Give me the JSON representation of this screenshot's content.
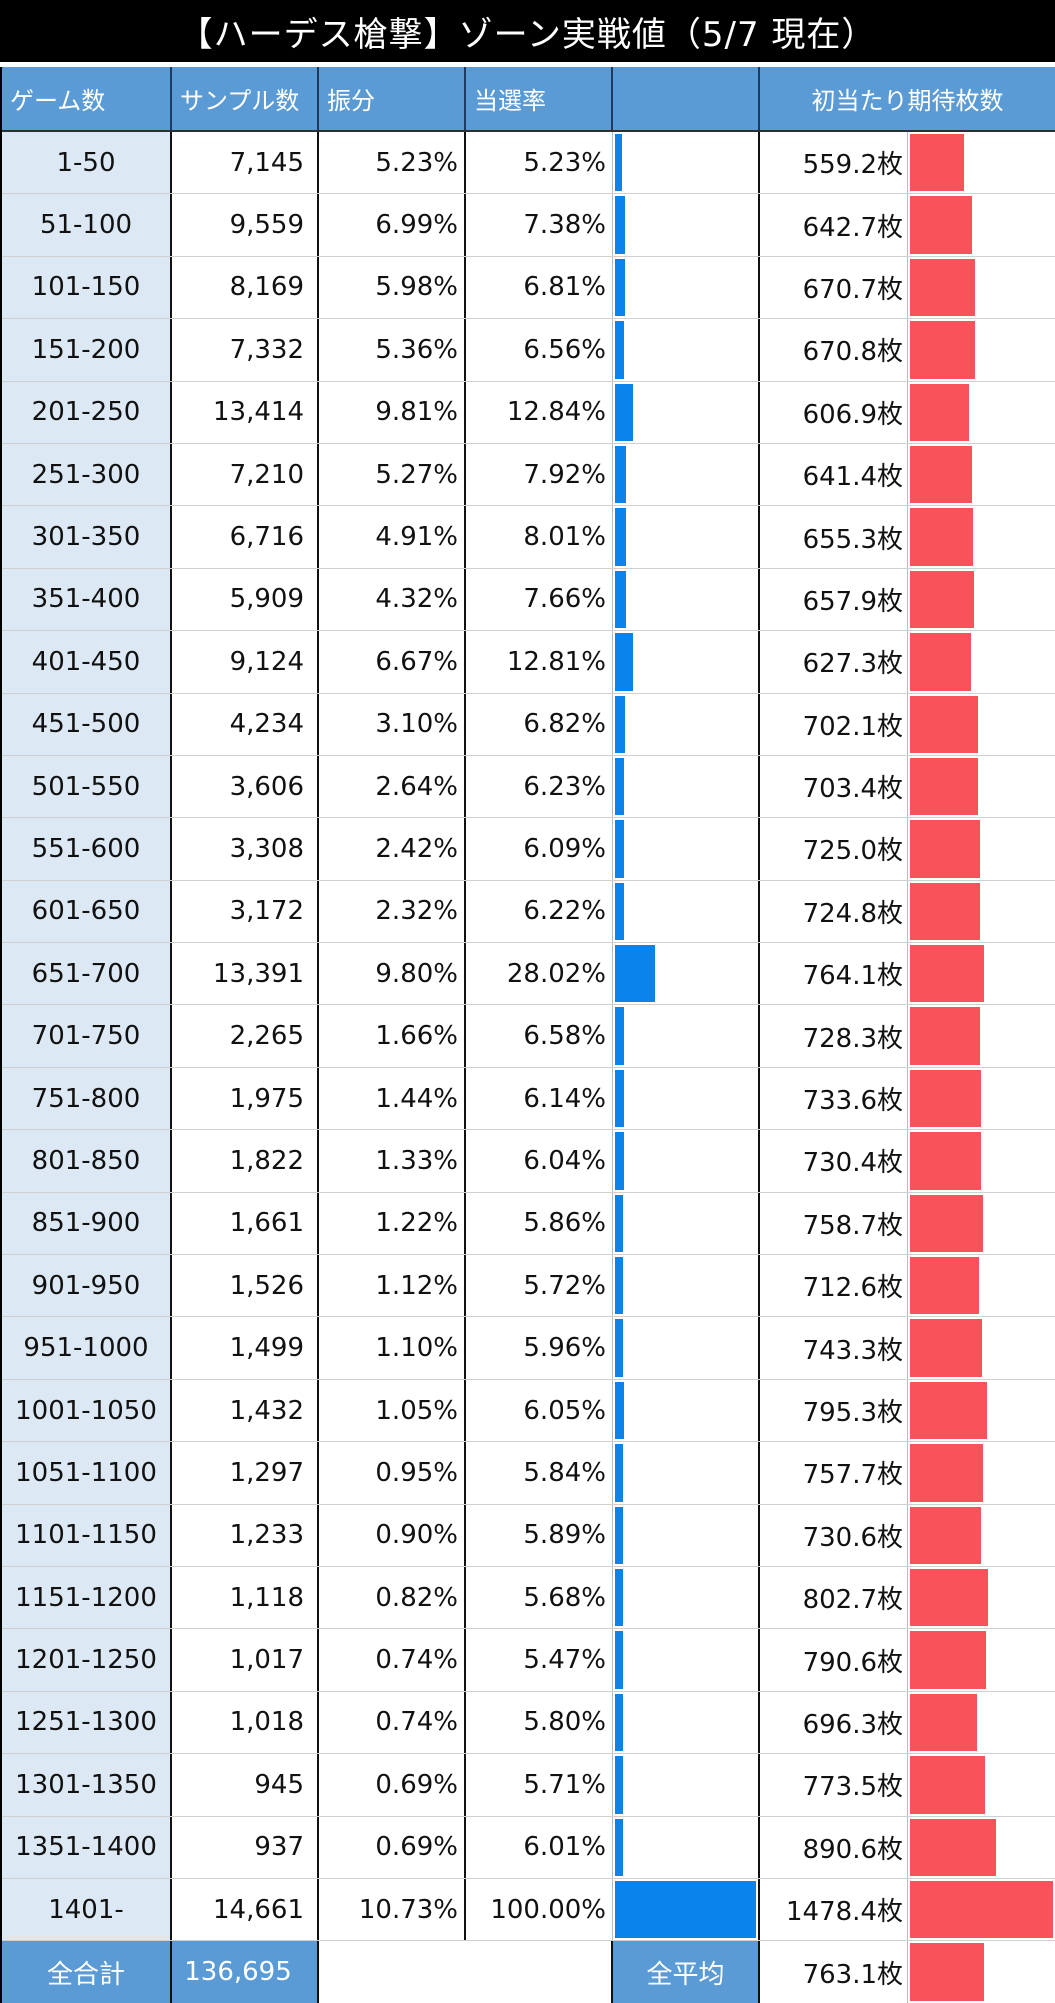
{
  "title": "【ハーデス槍撃】ゾーン実戦値（5/7 現在）",
  "headers": {
    "games": "ゲーム数",
    "samples": "サンプル数",
    "share": "振分",
    "rate": "当選率",
    "rate_bar": "",
    "expect": "初当たり期待枚数"
  },
  "colors": {
    "header_bg": "#5b9bd5",
    "label_bg": "#dce9f5",
    "rate_bar": "#0a84ec",
    "expect_bar": "#fa525b"
  },
  "rows": [
    {
      "zone": "1-50",
      "samples": "7,145",
      "share": "5.23%",
      "rate": "5.23%",
      "rate_value": 5.23,
      "expect": "559.2枚",
      "expect_value": 559.2
    },
    {
      "zone": "51-100",
      "samples": "9,559",
      "share": "6.99%",
      "rate": "7.38%",
      "rate_value": 7.38,
      "expect": "642.7枚",
      "expect_value": 642.7
    },
    {
      "zone": "101-150",
      "samples": "8,169",
      "share": "5.98%",
      "rate": "6.81%",
      "rate_value": 6.81,
      "expect": "670.7枚",
      "expect_value": 670.7
    },
    {
      "zone": "151-200",
      "samples": "7,332",
      "share": "5.36%",
      "rate": "6.56%",
      "rate_value": 6.56,
      "expect": "670.8枚",
      "expect_value": 670.8
    },
    {
      "zone": "201-250",
      "samples": "13,414",
      "share": "9.81%",
      "rate": "12.84%",
      "rate_value": 12.84,
      "expect": "606.9枚",
      "expect_value": 606.9
    },
    {
      "zone": "251-300",
      "samples": "7,210",
      "share": "5.27%",
      "rate": "7.92%",
      "rate_value": 7.92,
      "expect": "641.4枚",
      "expect_value": 641.4
    },
    {
      "zone": "301-350",
      "samples": "6,716",
      "share": "4.91%",
      "rate": "8.01%",
      "rate_value": 8.01,
      "expect": "655.3枚",
      "expect_value": 655.3
    },
    {
      "zone": "351-400",
      "samples": "5,909",
      "share": "4.32%",
      "rate": "7.66%",
      "rate_value": 7.66,
      "expect": "657.9枚",
      "expect_value": 657.9
    },
    {
      "zone": "401-450",
      "samples": "9,124",
      "share": "6.67%",
      "rate": "12.81%",
      "rate_value": 12.81,
      "expect": "627.3枚",
      "expect_value": 627.3
    },
    {
      "zone": "451-500",
      "samples": "4,234",
      "share": "3.10%",
      "rate": "6.82%",
      "rate_value": 6.82,
      "expect": "702.1枚",
      "expect_value": 702.1
    },
    {
      "zone": "501-550",
      "samples": "3,606",
      "share": "2.64%",
      "rate": "6.23%",
      "rate_value": 6.23,
      "expect": "703.4枚",
      "expect_value": 703.4
    },
    {
      "zone": "551-600",
      "samples": "3,308",
      "share": "2.42%",
      "rate": "6.09%",
      "rate_value": 6.09,
      "expect": "725.0枚",
      "expect_value": 725.0
    },
    {
      "zone": "601-650",
      "samples": "3,172",
      "share": "2.32%",
      "rate": "6.22%",
      "rate_value": 6.22,
      "expect": "724.8枚",
      "expect_value": 724.8
    },
    {
      "zone": "651-700",
      "samples": "13,391",
      "share": "9.80%",
      "rate": "28.02%",
      "rate_value": 28.02,
      "expect": "764.1枚",
      "expect_value": 764.1
    },
    {
      "zone": "701-750",
      "samples": "2,265",
      "share": "1.66%",
      "rate": "6.58%",
      "rate_value": 6.58,
      "expect": "728.3枚",
      "expect_value": 728.3
    },
    {
      "zone": "751-800",
      "samples": "1,975",
      "share": "1.44%",
      "rate": "6.14%",
      "rate_value": 6.14,
      "expect": "733.6枚",
      "expect_value": 733.6
    },
    {
      "zone": "801-850",
      "samples": "1,822",
      "share": "1.33%",
      "rate": "6.04%",
      "rate_value": 6.04,
      "expect": "730.4枚",
      "expect_value": 730.4
    },
    {
      "zone": "851-900",
      "samples": "1,661",
      "share": "1.22%",
      "rate": "5.86%",
      "rate_value": 5.86,
      "expect": "758.7枚",
      "expect_value": 758.7
    },
    {
      "zone": "901-950",
      "samples": "1,526",
      "share": "1.12%",
      "rate": "5.72%",
      "rate_value": 5.72,
      "expect": "712.6枚",
      "expect_value": 712.6
    },
    {
      "zone": "951-1000",
      "samples": "1,499",
      "share": "1.10%",
      "rate": "5.96%",
      "rate_value": 5.96,
      "expect": "743.3枚",
      "expect_value": 743.3
    },
    {
      "zone": "1001-1050",
      "samples": "1,432",
      "share": "1.05%",
      "rate": "6.05%",
      "rate_value": 6.05,
      "expect": "795.3枚",
      "expect_value": 795.3
    },
    {
      "zone": "1051-1100",
      "samples": "1,297",
      "share": "0.95%",
      "rate": "5.84%",
      "rate_value": 5.84,
      "expect": "757.7枚",
      "expect_value": 757.7
    },
    {
      "zone": "1101-1150",
      "samples": "1,233",
      "share": "0.90%",
      "rate": "5.89%",
      "rate_value": 5.89,
      "expect": "730.6枚",
      "expect_value": 730.6
    },
    {
      "zone": "1151-1200",
      "samples": "1,118",
      "share": "0.82%",
      "rate": "5.68%",
      "rate_value": 5.68,
      "expect": "802.7枚",
      "expect_value": 802.7
    },
    {
      "zone": "1201-1250",
      "samples": "1,017",
      "share": "0.74%",
      "rate": "5.47%",
      "rate_value": 5.47,
      "expect": "790.6枚",
      "expect_value": 790.6
    },
    {
      "zone": "1251-1300",
      "samples": "1,018",
      "share": "0.74%",
      "rate": "5.80%",
      "rate_value": 5.8,
      "expect": "696.3枚",
      "expect_value": 696.3
    },
    {
      "zone": "1301-1350",
      "samples": "945",
      "share": "0.69%",
      "rate": "5.71%",
      "rate_value": 5.71,
      "expect": "773.5枚",
      "expect_value": 773.5
    },
    {
      "zone": "1351-1400",
      "samples": "937",
      "share": "0.69%",
      "rate": "6.01%",
      "rate_value": 6.01,
      "expect": "890.6枚",
      "expect_value": 890.6
    },
    {
      "zone": "1401-",
      "samples": "14,661",
      "share": "10.73%",
      "rate": "100.00%",
      "rate_value": 100.0,
      "expect": "1478.4枚",
      "expect_value": 1478.4
    }
  ],
  "footer": {
    "total_label": "全合計",
    "total_value": "136,695",
    "avg_label": "全平均",
    "avg_value": "763.1枚",
    "avg_expect_value": 763.1
  }
}
